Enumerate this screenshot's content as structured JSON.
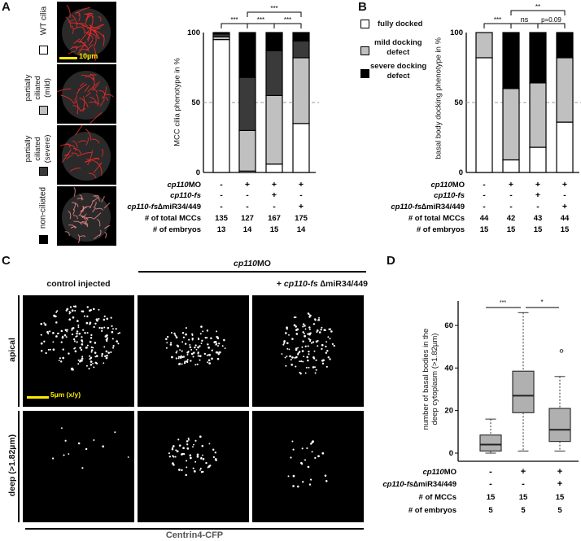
{
  "panels": {
    "a": "A",
    "b": "B",
    "c": "C",
    "d": "D"
  },
  "panel_a": {
    "legend": [
      {
        "label": "WT cilia",
        "color": "#ffffff"
      },
      {
        "label_lines": [
          "partially",
          "ciliated",
          "(mild)"
        ],
        "color": "#c0c0c0"
      },
      {
        "label_lines": [
          "partially",
          "ciliated",
          "(severe)"
        ],
        "color": "#3a3a3a"
      },
      {
        "label": "non-ciliated",
        "color": "#000000"
      }
    ],
    "scale_bar": "10µm",
    "row_labels": {
      "mo": "cp110",
      "mo_suffix": "MO",
      "fs": "cp110-fs",
      "dm_prefix": "cp110-fs",
      "dm_suffix": "∆miR34/449",
      "total": "# of total MCCs",
      "embryos": "# of embryos"
    },
    "columns": [
      {
        "mo": "-",
        "fs": "-",
        "dm": "-",
        "total": "135",
        "embryos": "13"
      },
      {
        "mo": "+",
        "fs": "-",
        "dm": "-",
        "total": "127",
        "embryos": "14"
      },
      {
        "mo": "+",
        "fs": "+",
        "dm": "-",
        "total": "167",
        "embryos": "15"
      },
      {
        "mo": "+",
        "fs": "-",
        "dm": "+",
        "total": "175",
        "embryos": "14"
      }
    ],
    "significance": [
      "***",
      "***",
      "***",
      "***"
    ]
  },
  "panel_b": {
    "legend": [
      {
        "label": "fully docked",
        "color": "#ffffff"
      },
      {
        "label_lines": [
          "mild docking",
          "defect"
        ],
        "color": "#c0c0c0"
      },
      {
        "label_lines": [
          "severe docking",
          "defect"
        ],
        "color": "#000000"
      }
    ],
    "row_labels": {
      "mo": "cp110",
      "mo_suffix": "MO",
      "fs": "cp110-fs",
      "dm_prefix": "cp110-fs",
      "dm_suffix": "∆miR34/449",
      "total": "# of total MCCs",
      "embryos": "# of embryos"
    },
    "columns": [
      {
        "mo": "-",
        "fs": "-",
        "dm": "-",
        "total": "44",
        "embryos": "15"
      },
      {
        "mo": "+",
        "fs": "-",
        "dm": "-",
        "total": "42",
        "embryos": "15"
      },
      {
        "mo": "+",
        "fs": "+",
        "dm": "-",
        "total": "43",
        "embryos": "15"
      },
      {
        "mo": "+",
        "fs": "-",
        "dm": "+",
        "total": "44",
        "embryos": "15"
      }
    ],
    "significance": [
      "***",
      "ns",
      "p=0.09",
      "**"
    ]
  },
  "panel_c": {
    "header_mo_italic": "cp110",
    "header_mo": "MO",
    "col_control": "control injected",
    "col_rescue_plus": "+ ",
    "col_rescue_italic": "cp110-fs",
    "col_rescue_rest": " ∆miR34/449",
    "row_apical": "apical",
    "row_deep": "deep (>1.82µm)",
    "scale_bar": "5µm (x/y)",
    "footer": "Centrin4-CFP"
  },
  "panel_d": {
    "row_labels": {
      "mo": "cp110",
      "mo_suffix": "MO",
      "dm_prefix": "cp110-fs",
      "dm_suffix": "∆miR34/449",
      "mccs": "# of MCCs",
      "embryos": "# of embryos"
    },
    "columns": [
      {
        "mo": "-",
        "dm": "-",
        "mccs": "15",
        "embryos": "5"
      },
      {
        "mo": "+",
        "dm": "-",
        "mccs": "15",
        "embryos": "5"
      },
      {
        "mo": "+",
        "dm": "+",
        "mccs": "15",
        "embryos": "5"
      }
    ],
    "significance": [
      "***",
      "*"
    ]
  },
  "chart_data": [
    {
      "id": "A",
      "type": "bar",
      "stacked": true,
      "ylabel": "MCC cilia phenotype in %",
      "ylim": [
        0,
        100
      ],
      "yticks": [
        "0",
        "50",
        "100"
      ],
      "reference_line": 50,
      "series": [
        {
          "name": "WT cilia",
          "color": "#ffffff",
          "values": [
            95,
            1,
            6,
            35
          ]
        },
        {
          "name": "partially ciliated (mild)",
          "color": "#c0c0c0",
          "values": [
            2,
            29,
            49,
            47
          ]
        },
        {
          "name": "partially ciliated (severe)",
          "color": "#3a3a3a",
          "values": [
            2,
            38,
            32,
            12
          ]
        },
        {
          "name": "non-ciliated",
          "color": "#000000",
          "values": [
            1,
            32,
            13,
            6
          ]
        }
      ]
    },
    {
      "id": "B",
      "type": "bar",
      "stacked": true,
      "ylabel": "basal body docking phenotype in %",
      "ylim": [
        0,
        100
      ],
      "yticks": [
        "0",
        "50",
        "100"
      ],
      "reference_line": 50,
      "series": [
        {
          "name": "fully docked",
          "color": "#ffffff",
          "values": [
            82,
            9,
            18,
            36
          ]
        },
        {
          "name": "mild docking defect",
          "color": "#c0c0c0",
          "values": [
            18,
            51,
            46,
            46
          ]
        },
        {
          "name": "severe docking defect",
          "color": "#000000",
          "values": [
            0,
            40,
            36,
            18
          ]
        }
      ]
    },
    {
      "id": "D",
      "type": "box",
      "ylabel": "number of basal bodies in the deep cytoplasm (>1.82µm)",
      "ylim": [
        -2,
        70
      ],
      "yticks": [
        "0",
        "20",
        "40",
        "60"
      ],
      "boxes": [
        {
          "min": 0,
          "q1": 1,
          "median": 4,
          "q3": 8.5,
          "max": 16,
          "outliers": []
        },
        {
          "min": 1,
          "q1": 19,
          "median": 27,
          "q3": 38.5,
          "max": 66,
          "outliers": []
        },
        {
          "min": 1,
          "q1": 5.5,
          "median": 11,
          "q3": 21,
          "max": 36,
          "outliers": [
            48
          ]
        }
      ],
      "color": "#b0b0b0"
    }
  ]
}
